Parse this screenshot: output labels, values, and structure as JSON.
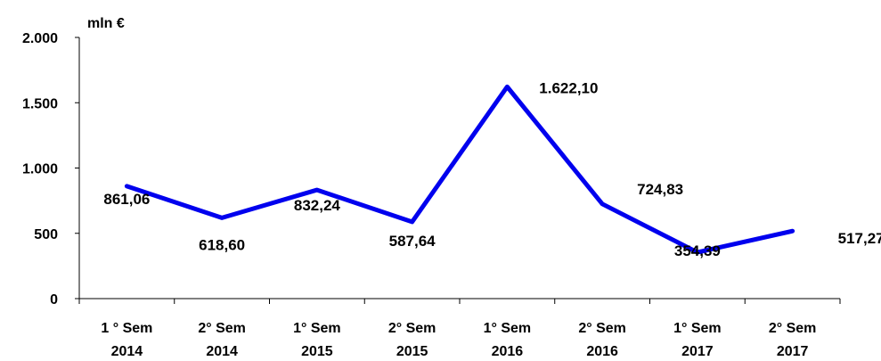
{
  "chart_data": {
    "type": "line",
    "unit_label": "mln €",
    "categories": [
      [
        "1 ° Sem",
        "2014"
      ],
      [
        "2° Sem",
        "2014"
      ],
      [
        "1° Sem",
        "2015"
      ],
      [
        "2° Sem",
        "2015"
      ],
      [
        "1° Sem",
        "2016"
      ],
      [
        "2° Sem",
        "2016"
      ],
      [
        "1° Sem",
        "2017"
      ],
      [
        "2° Sem",
        "2017"
      ]
    ],
    "series": [
      {
        "values": [
          861.06,
          618.6,
          832.24,
          587.64,
          1622.1,
          724.83,
          354.39,
          517.27
        ],
        "labels": [
          "861,06",
          "618,60",
          "832,24",
          "587,64",
          "1.622,10",
          "724,83",
          "354,39",
          "517,27"
        ],
        "color": "#0000ee"
      }
    ],
    "ylim": [
      0,
      2000
    ],
    "yticks": [
      0,
      500,
      1000,
      1500,
      2000
    ],
    "ytick_labels": [
      "0",
      "500",
      "1.000",
      "1.500",
      "2.000"
    ],
    "grid": false,
    "legend": "none"
  }
}
